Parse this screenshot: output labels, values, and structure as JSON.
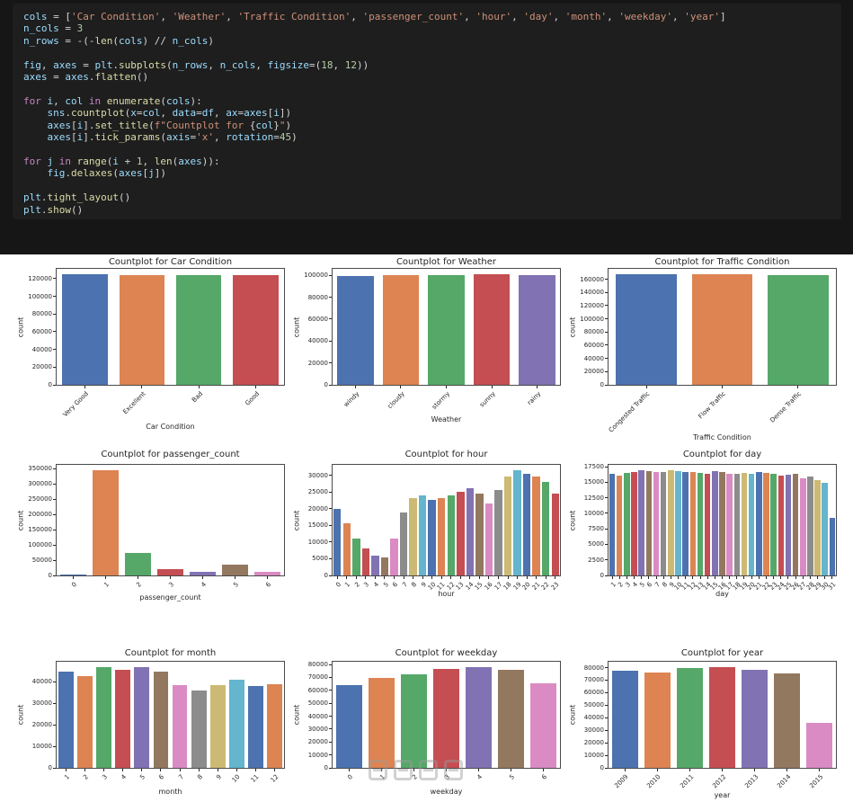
{
  "palette": [
    "#4c72b0",
    "#dd8452",
    "#55a868",
    "#c44e52",
    "#8172b3",
    "#937860",
    "#da8bc3",
    "#8c8c8c",
    "#ccb974",
    "#64b5cd"
  ],
  "code_panel": {
    "lines": [
      [
        {
          "t": "v",
          "s": "cols"
        },
        {
          "t": "p",
          "s": " = ["
        },
        {
          "t": "s",
          "s": "'Car Condition'"
        },
        {
          "t": "p",
          "s": ", "
        },
        {
          "t": "s",
          "s": "'Weather'"
        },
        {
          "t": "p",
          "s": ", "
        },
        {
          "t": "s",
          "s": "'Traffic Condition'"
        },
        {
          "t": "p",
          "s": ", "
        },
        {
          "t": "s",
          "s": "'passenger_count'"
        },
        {
          "t": "p",
          "s": ", "
        },
        {
          "t": "s",
          "s": "'hour'"
        },
        {
          "t": "p",
          "s": ", "
        },
        {
          "t": "s",
          "s": "'day'"
        },
        {
          "t": "p",
          "s": ", "
        },
        {
          "t": "s",
          "s": "'month'"
        },
        {
          "t": "p",
          "s": ", "
        },
        {
          "t": "s",
          "s": "'weekday'"
        },
        {
          "t": "p",
          "s": ", "
        },
        {
          "t": "s",
          "s": "'year'"
        },
        {
          "t": "p",
          "s": "]"
        }
      ],
      [
        {
          "t": "v",
          "s": "n_cols"
        },
        {
          "t": "p",
          "s": " = "
        },
        {
          "t": "n",
          "s": "3"
        }
      ],
      [
        {
          "t": "v",
          "s": "n_rows"
        },
        {
          "t": "p",
          "s": " = -(-"
        },
        {
          "t": "f",
          "s": "len"
        },
        {
          "t": "p",
          "s": "("
        },
        {
          "t": "v",
          "s": "cols"
        },
        {
          "t": "p",
          "s": ") // "
        },
        {
          "t": "v",
          "s": "n_cols"
        },
        {
          "t": "p",
          "s": ")"
        }
      ],
      [],
      [
        {
          "t": "v",
          "s": "fig"
        },
        {
          "t": "p",
          "s": ", "
        },
        {
          "t": "v",
          "s": "axes"
        },
        {
          "t": "p",
          "s": " = "
        },
        {
          "t": "v",
          "s": "plt"
        },
        {
          "t": "p",
          "s": "."
        },
        {
          "t": "f",
          "s": "subplots"
        },
        {
          "t": "p",
          "s": "("
        },
        {
          "t": "v",
          "s": "n_rows"
        },
        {
          "t": "p",
          "s": ", "
        },
        {
          "t": "v",
          "s": "n_cols"
        },
        {
          "t": "p",
          "s": ", "
        },
        {
          "t": "v",
          "s": "figsize"
        },
        {
          "t": "p",
          "s": "=("
        },
        {
          "t": "n",
          "s": "18"
        },
        {
          "t": "p",
          "s": ", "
        },
        {
          "t": "n",
          "s": "12"
        },
        {
          "t": "p",
          "s": "))"
        }
      ],
      [
        {
          "t": "v",
          "s": "axes"
        },
        {
          "t": "p",
          "s": " = "
        },
        {
          "t": "v",
          "s": "axes"
        },
        {
          "t": "p",
          "s": "."
        },
        {
          "t": "f",
          "s": "flatten"
        },
        {
          "t": "p",
          "s": "()"
        }
      ],
      [],
      [
        {
          "t": "k",
          "s": "for"
        },
        {
          "t": "p",
          "s": " "
        },
        {
          "t": "v",
          "s": "i"
        },
        {
          "t": "p",
          "s": ", "
        },
        {
          "t": "v",
          "s": "col"
        },
        {
          "t": "p",
          "s": " "
        },
        {
          "t": "k",
          "s": "in"
        },
        {
          "t": "p",
          "s": " "
        },
        {
          "t": "f",
          "s": "enumerate"
        },
        {
          "t": "p",
          "s": "("
        },
        {
          "t": "v",
          "s": "cols"
        },
        {
          "t": "p",
          "s": "):"
        }
      ],
      [
        {
          "t": "p",
          "s": "    "
        },
        {
          "t": "v",
          "s": "sns"
        },
        {
          "t": "p",
          "s": "."
        },
        {
          "t": "f",
          "s": "countplot"
        },
        {
          "t": "p",
          "s": "("
        },
        {
          "t": "v",
          "s": "x"
        },
        {
          "t": "p",
          "s": "="
        },
        {
          "t": "v",
          "s": "col"
        },
        {
          "t": "p",
          "s": ", "
        },
        {
          "t": "v",
          "s": "data"
        },
        {
          "t": "p",
          "s": "="
        },
        {
          "t": "v",
          "s": "df"
        },
        {
          "t": "p",
          "s": ", "
        },
        {
          "t": "v",
          "s": "ax"
        },
        {
          "t": "p",
          "s": "="
        },
        {
          "t": "v",
          "s": "axes"
        },
        {
          "t": "p",
          "s": "["
        },
        {
          "t": "v",
          "s": "i"
        },
        {
          "t": "p",
          "s": "])"
        }
      ],
      [
        {
          "t": "p",
          "s": "    "
        },
        {
          "t": "v",
          "s": "axes"
        },
        {
          "t": "p",
          "s": "["
        },
        {
          "t": "v",
          "s": "i"
        },
        {
          "t": "p",
          "s": "]."
        },
        {
          "t": "f",
          "s": "set_title"
        },
        {
          "t": "p",
          "s": "("
        },
        {
          "t": "s",
          "s": "f\"Countplot for "
        },
        {
          "t": "p",
          "s": "{"
        },
        {
          "t": "v",
          "s": "col"
        },
        {
          "t": "p",
          "s": "}"
        },
        {
          "t": "s",
          "s": "\""
        },
        {
          "t": "p",
          "s": ")"
        }
      ],
      [
        {
          "t": "p",
          "s": "    "
        },
        {
          "t": "v",
          "s": "axes"
        },
        {
          "t": "p",
          "s": "["
        },
        {
          "t": "v",
          "s": "i"
        },
        {
          "t": "p",
          "s": "]."
        },
        {
          "t": "f",
          "s": "tick_params"
        },
        {
          "t": "p",
          "s": "("
        },
        {
          "t": "v",
          "s": "axis"
        },
        {
          "t": "p",
          "s": "="
        },
        {
          "t": "s",
          "s": "'x'"
        },
        {
          "t": "p",
          "s": ", "
        },
        {
          "t": "v",
          "s": "rotation"
        },
        {
          "t": "p",
          "s": "="
        },
        {
          "t": "n",
          "s": "45"
        },
        {
          "t": "p",
          "s": ")"
        }
      ],
      [],
      [
        {
          "t": "k",
          "s": "for"
        },
        {
          "t": "p",
          "s": " "
        },
        {
          "t": "v",
          "s": "j"
        },
        {
          "t": "p",
          "s": " "
        },
        {
          "t": "k",
          "s": "in"
        },
        {
          "t": "p",
          "s": " "
        },
        {
          "t": "f",
          "s": "range"
        },
        {
          "t": "p",
          "s": "("
        },
        {
          "t": "v",
          "s": "i"
        },
        {
          "t": "p",
          "s": " + "
        },
        {
          "t": "n",
          "s": "1"
        },
        {
          "t": "p",
          "s": ", "
        },
        {
          "t": "f",
          "s": "len"
        },
        {
          "t": "p",
          "s": "("
        },
        {
          "t": "v",
          "s": "axes"
        },
        {
          "t": "p",
          "s": ")):"
        }
      ],
      [
        {
          "t": "p",
          "s": "    "
        },
        {
          "t": "v",
          "s": "fig"
        },
        {
          "t": "p",
          "s": "."
        },
        {
          "t": "f",
          "s": "delaxes"
        },
        {
          "t": "p",
          "s": "("
        },
        {
          "t": "v",
          "s": "axes"
        },
        {
          "t": "p",
          "s": "["
        },
        {
          "t": "v",
          "s": "j"
        },
        {
          "t": "p",
          "s": "])"
        }
      ],
      [],
      [
        {
          "t": "v",
          "s": "plt"
        },
        {
          "t": "p",
          "s": "."
        },
        {
          "t": "f",
          "s": "tight_layout"
        },
        {
          "t": "p",
          "s": "()"
        }
      ],
      [
        {
          "t": "v",
          "s": "plt"
        },
        {
          "t": "p",
          "s": "."
        },
        {
          "t": "f",
          "s": "show"
        },
        {
          "t": "p",
          "s": "()"
        }
      ]
    ]
  },
  "chart_data": [
    {
      "id": "car-condition",
      "type": "bar",
      "title": "Countplot for Car Condition",
      "xlabel": "Car Condition",
      "ylabel": "count",
      "categories": [
        "Very Good",
        "Excellent",
        "Bad",
        "Good"
      ],
      "values": [
        124800,
        124200,
        124400,
        123900
      ],
      "yticks": [
        0,
        20000,
        40000,
        60000,
        80000,
        100000,
        120000
      ],
      "axis_max": 131000,
      "xlabel_gap": 42
    },
    {
      "id": "weather",
      "type": "bar",
      "title": "Countplot for Weather",
      "xlabel": "Weather",
      "ylabel": "count",
      "categories": [
        "windy",
        "cloudy",
        "stormy",
        "sunny",
        "rainy"
      ],
      "values": [
        99800,
        100600,
        100300,
        100900,
        100100
      ],
      "yticks": [
        0,
        20000,
        40000,
        60000,
        80000,
        100000
      ],
      "axis_max": 106000,
      "xlabel_gap": 34
    },
    {
      "id": "traffic-condition",
      "type": "bar",
      "title": "Countplot for Traffic Condition",
      "xlabel": "Traffic Condition",
      "ylabel": "count",
      "categories": [
        "Congested Traffic",
        "Flow Traffic",
        "Dense Traffic"
      ],
      "values": [
        167400,
        167000,
        166700
      ],
      "yticks": [
        0,
        20000,
        40000,
        60000,
        80000,
        100000,
        120000,
        140000,
        160000
      ],
      "axis_max": 175800,
      "xlabel_gap": 54
    },
    {
      "id": "passenger-count",
      "type": "bar",
      "title": "Countplot for passenger_count",
      "xlabel": "passenger_count",
      "ylabel": "count",
      "categories": [
        "0",
        "1",
        "2",
        "3",
        "4",
        "5",
        "6"
      ],
      "values": [
        3200,
        345000,
        73500,
        22000,
        10500,
        36000,
        10800
      ],
      "yticks": [
        0,
        50000,
        100000,
        150000,
        200000,
        250000,
        300000,
        350000
      ],
      "axis_max": 362000,
      "xlabel_gap": 20
    },
    {
      "id": "hour",
      "type": "bar",
      "title": "Countplot for hour",
      "xlabel": "hour",
      "ylabel": "count",
      "categories": [
        "0",
        "1",
        "2",
        "3",
        "4",
        "5",
        "6",
        "7",
        "8",
        "9",
        "10",
        "11",
        "12",
        "13",
        "14",
        "15",
        "16",
        "17",
        "18",
        "19",
        "20",
        "21",
        "22",
        "23"
      ],
      "values": [
        20100,
        15600,
        11200,
        8100,
        5900,
        5400,
        11100,
        19000,
        23100,
        24100,
        22600,
        23100,
        24100,
        25100,
        26100,
        24600,
        21600,
        25600,
        29600,
        31600,
        30600,
        29600,
        28100,
        24600
      ],
      "yticks": [
        0,
        5000,
        10000,
        15000,
        20000,
        25000,
        30000
      ],
      "axis_max": 33200,
      "xlabel_gap": 16
    },
    {
      "id": "day",
      "type": "bar",
      "title": "Countplot for day",
      "xlabel": "day",
      "ylabel": "count",
      "categories": [
        "1",
        "2",
        "3",
        "4",
        "5",
        "6",
        "7",
        "8",
        "9",
        "10",
        "11",
        "12",
        "13",
        "14",
        "15",
        "16",
        "17",
        "18",
        "19",
        "20",
        "21",
        "22",
        "23",
        "24",
        "25",
        "26",
        "27",
        "28",
        "29",
        "30",
        "31"
      ],
      "values": [
        16300,
        16100,
        16500,
        16600,
        16900,
        16800,
        16600,
        16700,
        16900,
        16800,
        16700,
        16600,
        16500,
        16400,
        16800,
        16600,
        16400,
        16300,
        16500,
        16400,
        16600,
        16500,
        16300,
        16100,
        16200,
        16400,
        15700,
        15900,
        15300,
        14900,
        9300
      ],
      "yticks": [
        0,
        2500,
        5000,
        7500,
        10000,
        12500,
        15000,
        17500
      ],
      "axis_max": 17800,
      "xlabel_gap": 16
    },
    {
      "id": "month",
      "type": "bar",
      "title": "Countplot for month",
      "xlabel": "month",
      "ylabel": "count",
      "categories": [
        "1",
        "2",
        "3",
        "4",
        "5",
        "6",
        "7",
        "8",
        "9",
        "10",
        "11",
        "12"
      ],
      "values": [
        44600,
        42700,
        46900,
        45600,
        46900,
        44900,
        38300,
        36100,
        38300,
        41100,
        38100,
        38700
      ],
      "yticks": [
        0,
        10000,
        20000,
        30000,
        40000
      ],
      "axis_max": 49300,
      "xlabel_gap": 22
    },
    {
      "id": "weekday",
      "type": "bar",
      "title": "Countplot for weekday",
      "xlabel": "weekday",
      "ylabel": "count",
      "categories": [
        "0",
        "1",
        "2",
        "3",
        "4",
        "5",
        "6"
      ],
      "values": [
        64200,
        69600,
        72100,
        76600,
        78100,
        76100,
        65600
      ],
      "yticks": [
        0,
        10000,
        20000,
        30000,
        40000,
        50000,
        60000,
        70000,
        80000
      ],
      "axis_max": 82100,
      "xlabel_gap": 22
    },
    {
      "id": "year",
      "type": "bar",
      "title": "Countplot for year",
      "xlabel": "year",
      "ylabel": "count",
      "categories": [
        "2009",
        "2010",
        "2011",
        "2012",
        "2013",
        "2014",
        "2015"
      ],
      "values": [
        77600,
        76100,
        79600,
        80600,
        78600,
        75600,
        35600
      ],
      "yticks": [
        0,
        10000,
        20000,
        30000,
        40000,
        50000,
        60000,
        70000,
        80000
      ],
      "axis_max": 84700,
      "xlabel_gap": 26
    }
  ]
}
